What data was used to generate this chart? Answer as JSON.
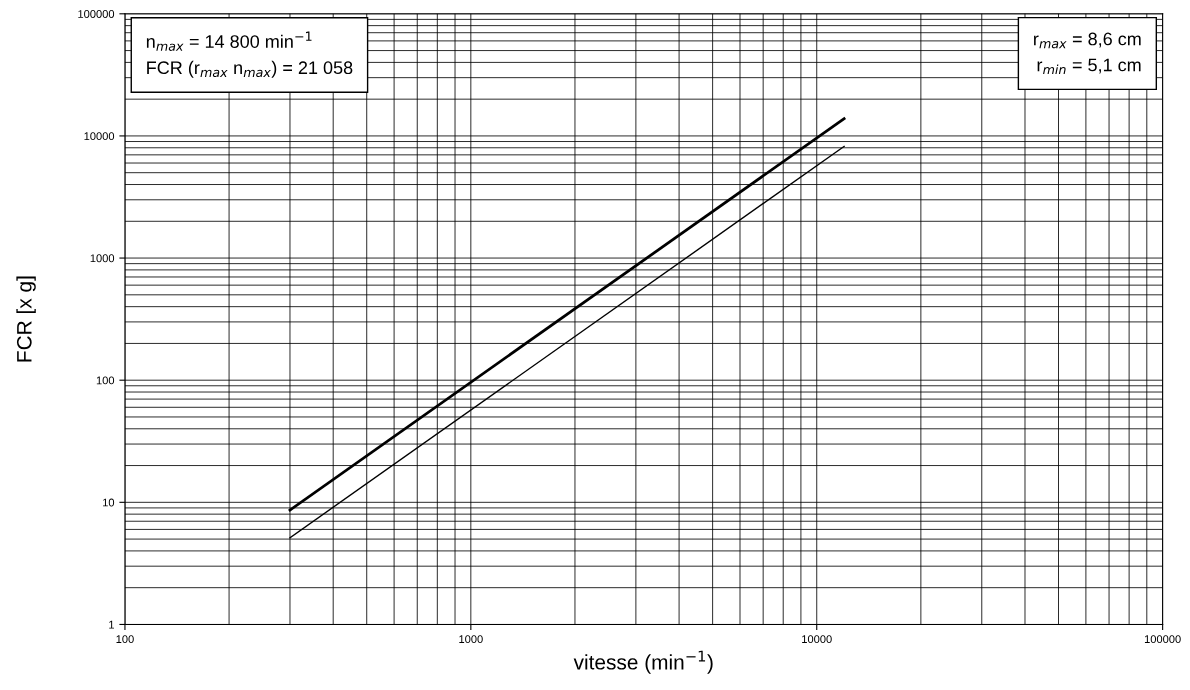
{
  "chart_data": {
    "type": "line",
    "xlabel": "vitesse (min$^{−1}$)",
    "ylabel": "FCR [x g]",
    "annotations": [
      "n$_{max}$ = 14 800 min$^{−1}$\nFCR (r$_{max}$ n$_{max}$) = 21 058",
      "r$_{max}$ = 8,6 cm\nr$_{min}$ = 5,1 cm"
    ],
    "x": [
      300,
      12000
    ],
    "series": [
      {
        "color": "#000000",
        "values": [
          8.65,
          13846
        ]
      },
      {
        "color": "#000000",
        "values": [
          5.13,
          8211
        ]
      }
    ],
    "log": "xy",
    "xlim": [
      100,
      100000
    ],
    "ylim": [
      1,
      100000
    ],
    "xticks": [
      100,
      1000,
      10000,
      100000
    ],
    "yticks": [
      1,
      10,
      100,
      1000,
      10000,
      100000
    ],
    "grid": true,
    "marker": "none",
    "line_style": "solid"
  }
}
